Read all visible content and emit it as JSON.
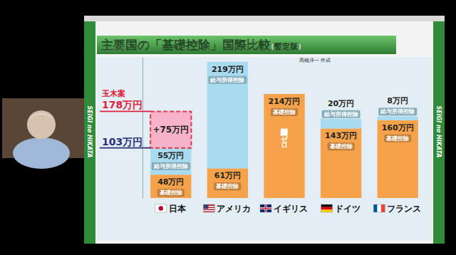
{
  "chart_data": {
    "type": "bar",
    "stacked": true,
    "data_labels": true,
    "tick_labels": "x",
    "title": "主要国の「基礎控除」国際比較",
    "subtitle": "(暫定版)",
    "source": "高橋洋一 作成",
    "branding": "SEIGI no HIKATA",
    "categories": [
      "日本",
      "アメリカ",
      "イギリス",
      "ドイツ",
      "フランス"
    ],
    "series": [
      {
        "name": "基礎控除",
        "color": "#f5a24a",
        "values": [
          48,
          61,
          214,
          143,
          160
        ],
        "value_labels": [
          "48万円",
          "61万円",
          "214万円",
          "143万円",
          "160万円"
        ]
      },
      {
        "name": "給与所得控除",
        "color": "#a8dbef",
        "values": [
          55,
          219,
          0,
          20,
          8
        ],
        "value_labels": [
          "55万円",
          "219万円",
          null,
          "20万円",
          "8万円"
        ]
      },
      {
        "name": "玉木案",
        "color": "#f6b3c9",
        "line_style": "dashed",
        "values": [
          75,
          null,
          null,
          null,
          null
        ],
        "value_labels": [
          "+75万円",
          null,
          null,
          null,
          null
        ]
      }
    ],
    "annotations": [
      {
        "text": "103万円",
        "value": 103
      },
      {
        "text": "178万円",
        "value": 178
      },
      {
        "text": "給与所得控除はゼロ",
        "category": "イギリス"
      }
    ],
    "ylim": [
      0,
      290
    ],
    "yticks": []
  }
}
